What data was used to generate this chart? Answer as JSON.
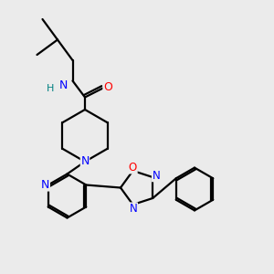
{
  "background_color": "#ebebeb",
  "bond_color": "#000000",
  "atom_colors": {
    "N": "#0000ff",
    "O": "#ff0000",
    "H": "#008080",
    "C": "#000000"
  },
  "figsize": [
    3.0,
    3.0
  ],
  "dpi": 100,
  "xlim": [
    0,
    10
  ],
  "ylim": [
    0,
    10
  ]
}
